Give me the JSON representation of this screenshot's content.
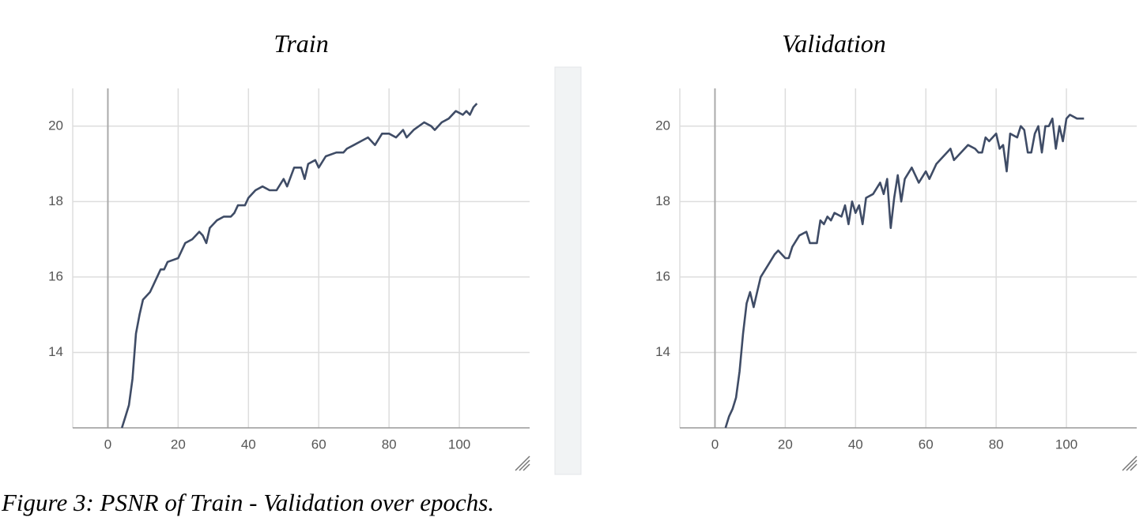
{
  "caption": "Figure 3: PSNR of Train - Validation over epochs.",
  "chart_data": [
    {
      "type": "line",
      "title": "Train",
      "color": "#3f4c66",
      "grid": true,
      "xlim": [
        -10,
        120
      ],
      "ylim": [
        12,
        21
      ],
      "xticks": [
        0,
        20,
        40,
        60,
        80,
        100
      ],
      "yticks": [
        14,
        16,
        18,
        20
      ],
      "x": [
        4,
        5,
        6,
        7,
        8,
        9,
        10,
        12,
        13,
        15,
        16,
        17,
        20,
        22,
        24,
        26,
        27,
        28,
        29,
        31,
        33,
        35,
        36,
        37,
        39,
        40,
        42,
        44,
        46,
        48,
        50,
        51,
        53,
        55,
        56,
        57,
        59,
        60,
        62,
        65,
        67,
        68,
        70,
        72,
        74,
        76,
        78,
        80,
        82,
        84,
        85,
        87,
        90,
        92,
        93,
        95,
        97,
        99,
        101,
        102,
        103,
        104,
        105
      ],
      "values": [
        12.0,
        12.3,
        12.6,
        13.3,
        14.5,
        15.0,
        15.4,
        15.6,
        15.8,
        16.2,
        16.2,
        16.4,
        16.5,
        16.9,
        17.0,
        17.2,
        17.1,
        16.9,
        17.3,
        17.5,
        17.6,
        17.6,
        17.7,
        17.9,
        17.9,
        18.1,
        18.3,
        18.4,
        18.3,
        18.3,
        18.6,
        18.4,
        18.9,
        18.9,
        18.6,
        19.0,
        19.1,
        18.9,
        19.2,
        19.3,
        19.3,
        19.4,
        19.5,
        19.6,
        19.7,
        19.5,
        19.8,
        19.8,
        19.7,
        19.9,
        19.7,
        19.9,
        20.1,
        20.0,
        19.9,
        20.1,
        20.2,
        20.4,
        20.3,
        20.4,
        20.3,
        20.5,
        20.6
      ]
    },
    {
      "type": "line",
      "title": "Validation",
      "color": "#3f4c66",
      "grid": true,
      "xlim": [
        -10,
        120
      ],
      "ylim": [
        12,
        21
      ],
      "xticks": [
        0,
        20,
        40,
        60,
        80,
        100
      ],
      "yticks": [
        14,
        16,
        18,
        20
      ],
      "x": [
        3,
        4,
        5,
        6,
        7,
        8,
        9,
        10,
        11,
        12,
        13,
        15,
        17,
        18,
        20,
        21,
        22,
        24,
        26,
        27,
        29,
        30,
        31,
        32,
        33,
        34,
        36,
        37,
        38,
        39,
        40,
        41,
        42,
        43,
        45,
        47,
        48,
        49,
        50,
        51,
        52,
        53,
        54,
        56,
        58,
        60,
        61,
        63,
        65,
        67,
        68,
        70,
        72,
        74,
        75,
        76,
        77,
        78,
        80,
        81,
        82,
        83,
        84,
        86,
        87,
        88,
        89,
        90,
        91,
        92,
        93,
        94,
        95,
        96,
        97,
        98,
        99,
        100,
        101,
        103,
        105
      ],
      "values": [
        12.0,
        12.3,
        12.5,
        12.8,
        13.5,
        14.5,
        15.3,
        15.6,
        15.2,
        15.6,
        16.0,
        16.3,
        16.6,
        16.7,
        16.5,
        16.5,
        16.8,
        17.1,
        17.2,
        16.9,
        16.9,
        17.5,
        17.4,
        17.6,
        17.5,
        17.7,
        17.6,
        17.9,
        17.4,
        18.0,
        17.7,
        17.9,
        17.4,
        18.1,
        18.2,
        18.5,
        18.2,
        18.6,
        17.3,
        18.1,
        18.7,
        18.0,
        18.6,
        18.9,
        18.5,
        18.8,
        18.6,
        19.0,
        19.2,
        19.4,
        19.1,
        19.3,
        19.5,
        19.4,
        19.3,
        19.3,
        19.7,
        19.6,
        19.8,
        19.4,
        19.5,
        18.8,
        19.8,
        19.7,
        20.0,
        19.9,
        19.3,
        19.3,
        19.8,
        20.0,
        19.3,
        20.0,
        20.0,
        20.2,
        19.4,
        20.0,
        19.6,
        20.2,
        20.3,
        20.2,
        20.2
      ]
    }
  ]
}
